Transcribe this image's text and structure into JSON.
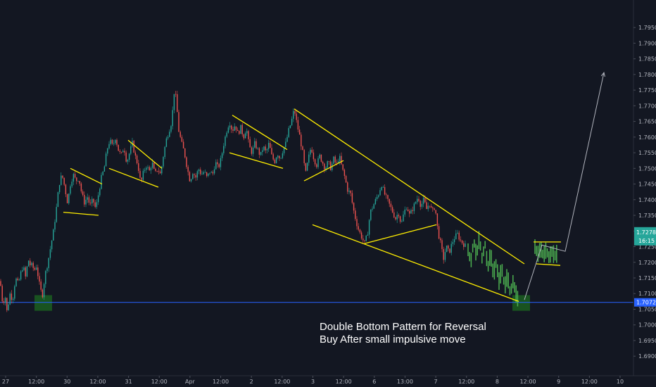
{
  "chart_data": {
    "type": "candlestick",
    "y_axis": {
      "position": "right",
      "ticks": [
        "1.79500",
        "1.79000",
        "1.78500",
        "1.78000",
        "1.77500",
        "1.77000",
        "1.76500",
        "1.76000",
        "1.75500",
        "1.75000",
        "1.74500",
        "1.74000",
        "1.73500",
        "1.73000",
        "1.72500",
        "1.72000",
        "1.71500",
        "1.71000",
        "1.70500",
        "1.70000",
        "1.69500",
        "1.69000"
      ],
      "ylim": [
        1.6878,
        1.7993
      ]
    },
    "x_axis": {
      "ticks": [
        "27",
        "12:00",
        "30",
        "12:00",
        "31",
        "12:00",
        "Apr",
        "12:00",
        "2",
        "12:00",
        "3",
        "12:00",
        "6",
        "13:00",
        "7",
        "12:00",
        "8",
        "12:00",
        "9",
        "12:00",
        "10"
      ]
    },
    "price_labels": {
      "current": "1.72786",
      "countdown": "16:15",
      "support": "1.70720"
    },
    "support_level": 1.7072,
    "colors": {
      "background": "#131722",
      "up_candle": "#26a69a",
      "down_candle": "#ef5350",
      "trendline": "#ffee00",
      "support_line": "#2962ff",
      "projection": "#4caf50",
      "current_label": "#26a69a",
      "support_label": "#2962ff"
    },
    "candles_path": [
      [
        0,
        1.714
      ],
      [
        2,
        1.711
      ],
      [
        4,
        1.706
      ],
      [
        7,
        1.71
      ],
      [
        10,
        1.704
      ],
      [
        14,
        1.71
      ],
      [
        18,
        1.708
      ],
      [
        22,
        1.715
      ],
      [
        26,
        1.713
      ],
      [
        30,
        1.717
      ],
      [
        33,
        1.719
      ],
      [
        36,
        1.715
      ],
      [
        38,
        1.718
      ],
      [
        41,
        1.721
      ],
      [
        44,
        1.718
      ],
      [
        46,
        1.72
      ],
      [
        48,
        1.717
      ],
      [
        52,
        1.719
      ],
      [
        55,
        1.714
      ],
      [
        58,
        1.711
      ],
      [
        60,
        1.709
      ],
      [
        64,
        1.716
      ],
      [
        68,
        1.72
      ],
      [
        72,
        1.725
      ],
      [
        76,
        1.73
      ],
      [
        80,
        1.737
      ],
      [
        84,
        1.745
      ],
      [
        88,
        1.748
      ],
      [
        92,
        1.744
      ],
      [
        96,
        1.739
      ],
      [
        100,
        1.745
      ],
      [
        104,
        1.748
      ],
      [
        108,
        1.746
      ],
      [
        112,
        1.747
      ],
      [
        116,
        1.742
      ],
      [
        120,
        1.739
      ],
      [
        124,
        1.741
      ],
      [
        128,
        1.738
      ],
      [
        132,
        1.74
      ],
      [
        136,
        1.737
      ],
      [
        140,
        1.742
      ],
      [
        144,
        1.747
      ],
      [
        148,
        1.75
      ],
      [
        152,
        1.756
      ],
      [
        156,
        1.759
      ],
      [
        160,
        1.757
      ],
      [
        164,
        1.76
      ],
      [
        168,
        1.756
      ],
      [
        172,
        1.754
      ],
      [
        176,
        1.757
      ],
      [
        180,
        1.752
      ],
      [
        184,
        1.755
      ],
      [
        188,
        1.758
      ],
      [
        192,
        1.754
      ],
      [
        196,
        1.751
      ],
      [
        200,
        1.745
      ],
      [
        204,
        1.749
      ],
      [
        208,
        1.751
      ],
      [
        212,
        1.749
      ],
      [
        216,
        1.752
      ],
      [
        220,
        1.748
      ],
      [
        224,
        1.75
      ],
      [
        228,
        1.748
      ],
      [
        232,
        1.754
      ],
      [
        236,
        1.759
      ],
      [
        240,
        1.762
      ],
      [
        244,
        1.765
      ],
      [
        248,
        1.776
      ],
      [
        251,
        1.77
      ],
      [
        254,
        1.762
      ],
      [
        258,
        1.758
      ],
      [
        262,
        1.755
      ],
      [
        266,
        1.75
      ],
      [
        270,
        1.746
      ],
      [
        274,
        1.749
      ],
      [
        278,
        1.747
      ],
      [
        282,
        1.75
      ],
      [
        286,
        1.748
      ],
      [
        290,
        1.749
      ],
      [
        294,
        1.747
      ],
      [
        298,
        1.749
      ],
      [
        302,
        1.748
      ],
      [
        306,
        1.752
      ],
      [
        310,
        1.75
      ],
      [
        314,
        1.753
      ],
      [
        318,
        1.758
      ],
      [
        322,
        1.762
      ],
      [
        326,
        1.765
      ],
      [
        330,
        1.762
      ],
      [
        334,
        1.764
      ],
      [
        338,
        1.761
      ],
      [
        342,
        1.763
      ],
      [
        346,
        1.76
      ],
      [
        350,
        1.763
      ],
      [
        354,
        1.757
      ],
      [
        358,
        1.755
      ],
      [
        362,
        1.758
      ],
      [
        366,
        1.756
      ],
      [
        370,
        1.754
      ],
      [
        374,
        1.757
      ],
      [
        378,
        1.755
      ],
      [
        382,
        1.758
      ],
      [
        386,
        1.754
      ],
      [
        390,
        1.752
      ],
      [
        394,
        1.755
      ],
      [
        398,
        1.753
      ],
      [
        402,
        1.756
      ],
      [
        406,
        1.758
      ],
      [
        410,
        1.762
      ],
      [
        414,
        1.765
      ],
      [
        418,
        1.769
      ],
      [
        422,
        1.764
      ],
      [
        426,
        1.76
      ],
      [
        430,
        1.755
      ],
      [
        434,
        1.748
      ],
      [
        438,
        1.753
      ],
      [
        442,
        1.757
      ],
      [
        446,
        1.753
      ],
      [
        450,
        1.751
      ],
      [
        454,
        1.754
      ],
      [
        458,
        1.752
      ],
      [
        462,
        1.75
      ],
      [
        466,
        1.752
      ],
      [
        470,
        1.75
      ],
      [
        474,
        1.753
      ],
      [
        478,
        1.751
      ],
      [
        482,
        1.754
      ],
      [
        486,
        1.75
      ],
      [
        490,
        1.747
      ],
      [
        494,
        1.743
      ],
      [
        498,
        1.742
      ],
      [
        502,
        1.737
      ],
      [
        506,
        1.733
      ],
      [
        510,
        1.73
      ],
      [
        514,
        1.728
      ],
      [
        518,
        1.726
      ],
      [
        522,
        1.729
      ],
      [
        526,
        1.736
      ],
      [
        530,
        1.738
      ],
      [
        534,
        1.74
      ],
      [
        538,
        1.742
      ],
      [
        542,
        1.745
      ],
      [
        546,
        1.742
      ],
      [
        550,
        1.74
      ],
      [
        554,
        1.738
      ],
      [
        558,
        1.736
      ],
      [
        562,
        1.734
      ],
      [
        566,
        1.736
      ],
      [
        570,
        1.732
      ],
      [
        574,
        1.736
      ],
      [
        578,
        1.738
      ],
      [
        582,
        1.735
      ],
      [
        586,
        1.737
      ],
      [
        590,
        1.739
      ],
      [
        594,
        1.741
      ],
      [
        598,
        1.738
      ],
      [
        602,
        1.74
      ],
      [
        606,
        1.737
      ],
      [
        610,
        1.739
      ],
      [
        614,
        1.736
      ],
      [
        618,
        1.738
      ],
      [
        622,
        1.73
      ],
      [
        626,
        1.726
      ],
      [
        630,
        1.721
      ],
      [
        634,
        1.725
      ],
      [
        638,
        1.723
      ],
      [
        642,
        1.726
      ],
      [
        646,
        1.728
      ],
      [
        650,
        1.729
      ],
      [
        654,
        1.727
      ],
      [
        658,
        1.726
      ],
      [
        662,
        1.725
      ]
    ],
    "projection_path": [
      [
        665,
        1.724
      ],
      [
        669,
        1.72
      ],
      [
        673,
        1.727
      ],
      [
        677,
        1.722
      ],
      [
        681,
        1.728
      ],
      [
        685,
        1.721
      ],
      [
        689,
        1.726
      ],
      [
        693,
        1.718
      ],
      [
        697,
        1.723
      ],
      [
        701,
        1.716
      ],
      [
        705,
        1.72
      ],
      [
        709,
        1.714
      ],
      [
        713,
        1.718
      ],
      [
        717,
        1.712
      ],
      [
        721,
        1.716
      ],
      [
        725,
        1.71
      ],
      [
        729,
        1.714
      ],
      [
        733,
        1.71
      ],
      [
        736,
        1.708
      ],
      [
        760,
        1.725
      ],
      [
        764,
        1.7225
      ],
      [
        768,
        1.7245
      ],
      [
        772,
        1.722
      ],
      [
        776,
        1.724
      ],
      [
        780,
        1.7215
      ],
      [
        784,
        1.7235
      ],
      [
        788,
        1.722
      ],
      [
        792,
        1.723
      ]
    ],
    "trendlines": [
      [
        [
          90,
          1.736
        ],
        [
          140,
          1.735
        ]
      ],
      [
        [
          100,
          1.75
        ],
        [
          145,
          1.745
        ]
      ],
      [
        [
          155,
          1.75
        ],
        [
          225,
          1.744
        ]
      ],
      [
        [
          182,
          1.759
        ],
        [
          230,
          1.75
        ]
      ],
      [
        [
          326,
          1.755
        ],
        [
          402,
          1.75
        ]
      ],
      [
        [
          330,
          1.767
        ],
        [
          408,
          1.756
        ]
      ],
      [
        [
          432,
          1.746
        ],
        [
          488,
          1.7525
        ]
      ],
      [
        [
          418,
          1.769
        ],
        [
          745,
          1.7195
        ]
      ],
      [
        [
          444,
          1.732
        ],
        [
          737,
          1.7075
        ]
      ],
      [
        [
          518,
          1.726
        ],
        [
          620,
          1.732
        ]
      ],
      [
        [
          758,
          1.7265
        ],
        [
          797,
          1.7265
        ]
      ],
      [
        [
          762,
          1.7195
        ],
        [
          796,
          1.719
        ]
      ]
    ],
    "projection_arrow": [
      [
        745,
        1.708
      ],
      [
        770,
        1.7255
      ],
      [
        803,
        1.7235
      ],
      [
        858,
        1.7806
      ]
    ],
    "highlight_boxes": [
      {
        "x0": 49,
        "x1": 74,
        "y0": 1.7095,
        "y1": 1.7045
      },
      {
        "x0": 728,
        "x1": 753,
        "y0": 1.7095,
        "y1": 1.7045
      }
    ]
  },
  "annotation": {
    "line1": "Double Bottom Pattern for Reversal",
    "line2": "Buy After small impulsive move"
  }
}
